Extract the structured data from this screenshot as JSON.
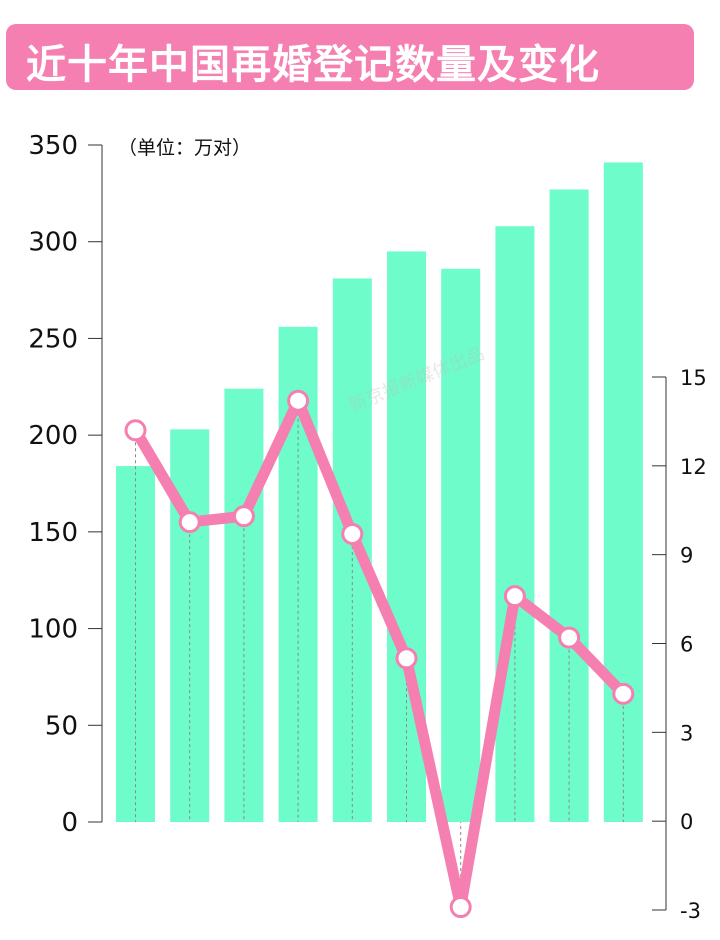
{
  "title": "近十年中国再婚登记数量及变化",
  "unit_label": "（单位：万对）",
  "watermark": "新京报新媒体出品",
  "colors": {
    "bar": "#6efcca",
    "line": "#f57fb0",
    "title_bg": "#f57fb0"
  },
  "chart_data": {
    "type": "bar",
    "left_axis": {
      "ylim": [
        0,
        350
      ],
      "ticks": [
        0,
        50,
        100,
        150,
        200,
        250,
        300,
        350
      ]
    },
    "right_axis": {
      "ylim": [
        -3,
        15
      ],
      "ticks": [
        -3,
        0,
        3,
        6,
        9,
        12,
        15
      ]
    },
    "bar_values": [
      184,
      203,
      224,
      256,
      281,
      295,
      286,
      308,
      327,
      341
    ],
    "line_values": [
      13.2,
      10.1,
      10.3,
      14.2,
      9.7,
      5.5,
      -2.9,
      7.6,
      6.2,
      4.3
    ]
  }
}
